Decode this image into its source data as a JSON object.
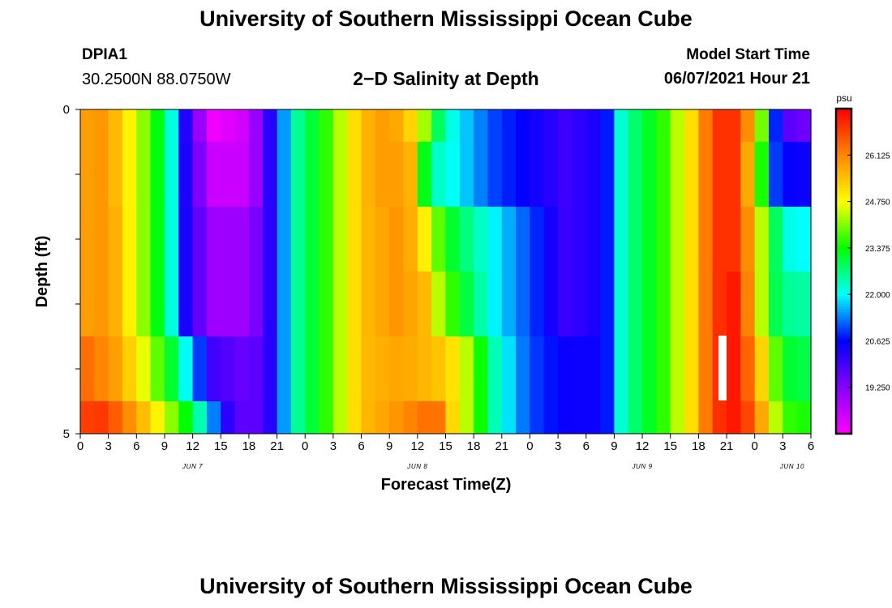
{
  "header": {
    "title": "University of Southern Mississippi Ocean Cube",
    "station_id": "DPIA1",
    "station_coords": "30.2500N  88.0750W",
    "chart_title": "2−D Salinity at Depth",
    "model_label": "Model Start Time",
    "model_time": "06/07/2021 Hour 21"
  },
  "footer": {
    "title": "University of Southern Mississippi Ocean Cube"
  },
  "chart_data": {
    "type": "heatmap",
    "title": "2−D Salinity at Depth",
    "xlabel": "Forecast Time(Z)",
    "ylabel": "Depth (ft)",
    "colorbar_label": "psu",
    "colorbar_ticks": [
      "26.125",
      "24.750",
      "23.375",
      "22.000",
      "20.625",
      "19.250"
    ],
    "colorbar_tick_values": [
      26.125,
      24.75,
      23.375,
      22.0,
      20.625,
      19.25
    ],
    "color_range": [
      17.875,
      27.5
    ],
    "palette": [
      "#ff00ff",
      "#8800ff",
      "#0000ff",
      "#00ffff",
      "#00ff00",
      "#ffff00",
      "#ff8800",
      "#ff0000"
    ],
    "x_tick_labels": [
      "0",
      "3",
      "6",
      "9",
      "12",
      "15",
      "18",
      "21",
      "0",
      "3",
      "6",
      "9",
      "12",
      "15",
      "18",
      "21",
      "0",
      "3",
      "6",
      "9",
      "12",
      "15",
      "18",
      "21",
      "0",
      "3",
      "6"
    ],
    "x_range_hours": [
      0,
      78
    ],
    "date_labels": [
      {
        "label": "JUN 7",
        "hour": 12
      },
      {
        "label": "JUN 8",
        "hour": 36
      },
      {
        "label": "JUN 9",
        "hour": 60
      },
      {
        "label": "JUN 10",
        "hour": 76
      }
    ],
    "y_tick_labels": [
      "0",
      "5"
    ],
    "ylim": [
      0,
      5
    ],
    "y_minor_ticks": [
      1,
      2,
      3,
      4
    ],
    "depth_layers": [
      0,
      0.5,
      1.5,
      2.5,
      3.5,
      4.5
    ],
    "series": [
      {
        "hours": [
          0,
          2,
          4,
          6,
          8,
          10,
          11,
          14,
          18,
          20,
          23,
          26,
          30,
          33,
          36,
          38,
          40,
          44,
          48,
          52,
          56,
          58,
          60,
          62,
          64,
          66,
          67,
          68,
          70,
          72,
          73,
          74,
          76,
          78
        ],
        "values": [
          25.8,
          26.0,
          25.5,
          24.5,
          23.5,
          22.0,
          20.5,
          18.0,
          18.5,
          20.0,
          22.5,
          23.5,
          25.5,
          26.0,
          25.0,
          23.0,
          22.0,
          21.0,
          20.5,
          20.0,
          20.5,
          22.5,
          23.0,
          23.5,
          24.5,
          25.5,
          26.5,
          27.0,
          27.0,
          25.5,
          23.5,
          21.0,
          19.5,
          19.5
        ]
      },
      {
        "hours": [
          0,
          2,
          4,
          6,
          8,
          10,
          11,
          14,
          18,
          20,
          23,
          26,
          30,
          33,
          36,
          37,
          40,
          44,
          48,
          52,
          56,
          58,
          60,
          62,
          64,
          66,
          67,
          68,
          70,
          72,
          73,
          74,
          76,
          78
        ],
        "values": [
          25.8,
          26.0,
          25.5,
          24.5,
          23.5,
          22.0,
          20.5,
          18.5,
          18.5,
          20.0,
          22.5,
          23.5,
          25.5,
          26.0,
          25.5,
          22.5,
          22.0,
          21.0,
          20.5,
          20.0,
          20.5,
          22.5,
          23.0,
          23.5,
          24.5,
          25.5,
          26.5,
          27.0,
          27.0,
          25.0,
          23.0,
          21.0,
          20.5,
          20.5
        ]
      },
      {
        "hours": [
          0,
          2,
          4,
          6,
          8,
          10,
          11,
          14,
          18,
          20,
          23,
          26,
          30,
          34,
          36,
          38,
          40,
          44,
          48,
          52,
          56,
          58,
          60,
          62,
          64,
          66,
          67,
          68,
          70,
          72,
          73,
          74,
          76,
          78
        ],
        "values": [
          25.8,
          26.0,
          25.6,
          24.5,
          23.5,
          22.0,
          20.5,
          19.0,
          19.0,
          20.0,
          22.5,
          23.5,
          25.5,
          26.0,
          25.5,
          24.0,
          23.0,
          22.0,
          21.0,
          20.0,
          20.5,
          22.5,
          23.0,
          23.5,
          24.5,
          25.5,
          26.5,
          27.0,
          27.0,
          25.5,
          24.0,
          23.0,
          22.0,
          22.0
        ]
      },
      {
        "hours": [
          0,
          2,
          4,
          6,
          8,
          10,
          11,
          14,
          18,
          20,
          23,
          26,
          30,
          34,
          37,
          38,
          40,
          44,
          48,
          52,
          56,
          58,
          60,
          62,
          64,
          66,
          67,
          68,
          70,
          72,
          73,
          74,
          76,
          78
        ],
        "values": [
          25.8,
          26.0,
          25.6,
          24.5,
          23.5,
          22.0,
          20.5,
          19.0,
          19.0,
          20.0,
          22.5,
          23.5,
          25.5,
          26.0,
          25.5,
          24.5,
          23.5,
          22.0,
          21.0,
          20.0,
          20.5,
          22.5,
          23.0,
          23.5,
          24.5,
          25.5,
          26.5,
          27.0,
          27.3,
          25.5,
          24.0,
          23.0,
          22.5,
          22.5
        ]
      },
      {
        "hours": [
          0,
          2,
          4,
          6,
          8,
          10,
          12,
          14,
          18,
          20,
          23,
          26,
          30,
          34,
          38,
          40,
          42,
          44,
          48,
          52,
          56,
          58,
          60,
          62,
          64,
          66,
          67,
          68,
          70,
          72,
          73,
          74,
          76,
          78
        ],
        "values": [
          26.5,
          26.2,
          25.8,
          25.0,
          24.0,
          23.0,
          21.5,
          20.0,
          19.5,
          20.0,
          22.5,
          23.5,
          25.5,
          25.8,
          25.5,
          25.0,
          24.0,
          22.5,
          21.0,
          20.5,
          20.5,
          22.5,
          23.0,
          23.5,
          24.5,
          25.5,
          26.5,
          27.0,
          27.3,
          26.0,
          25.0,
          24.0,
          23.0,
          23.0
        ]
      },
      {
        "hours": [
          0,
          2,
          4,
          6,
          8,
          10,
          12,
          14,
          16,
          18,
          20,
          23,
          26,
          30,
          34,
          38,
          40,
          42,
          44,
          48,
          52,
          56,
          58,
          60,
          62,
          64,
          66,
          67,
          68,
          70,
          72,
          73,
          74,
          76,
          78
        ],
        "values": [
          26.8,
          27.0,
          26.5,
          25.8,
          25.0,
          24.0,
          23.0,
          21.5,
          20.0,
          19.5,
          20.0,
          22.5,
          23.5,
          25.5,
          26.0,
          26.5,
          25.0,
          24.0,
          22.5,
          21.0,
          20.5,
          20.5,
          22.5,
          23.0,
          23.5,
          24.5,
          25.5,
          26.5,
          27.0,
          27.3,
          26.5,
          25.5,
          24.5,
          23.5,
          23.5
        ]
      }
    ]
  }
}
